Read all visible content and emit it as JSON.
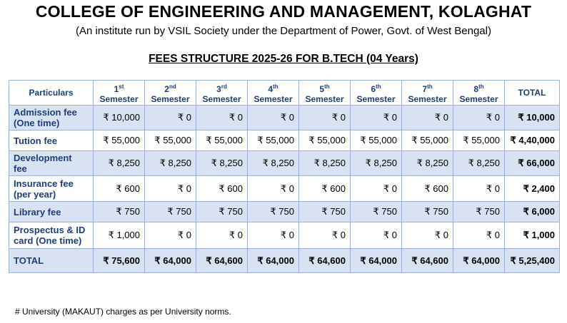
{
  "header": {
    "title": "COLLEGE OF ENGINEERING AND MANAGEMENT, KOLAGHAT",
    "subtitle": "(An institute run by VSIL Society under the Department of Power, Govt. of West Bengal)",
    "heading": "FEES STRUCTURE 2025-26 FOR B.TECH (04 Years)"
  },
  "table": {
    "col_particulars": "Particulars",
    "col_total": "TOTAL",
    "semester_word": "Semester",
    "semesters": [
      {
        "num": "1",
        "sup": "st"
      },
      {
        "num": "2",
        "sup": "nd"
      },
      {
        "num": "3",
        "sup": "rd"
      },
      {
        "num": "4",
        "sup": "th"
      },
      {
        "num": "5",
        "sup": "th"
      },
      {
        "num": "6",
        "sup": "th"
      },
      {
        "num": "7",
        "sup": "th"
      },
      {
        "num": "8",
        "sup": "th"
      }
    ],
    "rows": [
      {
        "label_lines": [
          "Admission fee",
          "(One time)"
        ],
        "values": [
          "₹ 10,000",
          "₹ 0",
          "₹ 0",
          "₹ 0",
          "₹ 0",
          "₹ 0",
          "₹ 0",
          "₹ 0"
        ],
        "total": "₹ 10,000"
      },
      {
        "label_lines": [
          "Tution fee"
        ],
        "values": [
          "₹ 55,000",
          "₹ 55,000",
          "₹ 55,000",
          "₹ 55,000",
          "₹ 55,000",
          "₹ 55,000",
          "₹ 55,000",
          "₹ 55,000"
        ],
        "total": "₹ 4,40,000"
      },
      {
        "label_lines": [
          "Development",
          "fee"
        ],
        "values": [
          "₹ 8,250",
          "₹ 8,250",
          "₹ 8,250",
          "₹ 8,250",
          "₹ 8,250",
          "₹ 8,250",
          "₹ 8,250",
          "₹ 8,250"
        ],
        "total": "₹ 66,000"
      },
      {
        "label_lines": [
          "Insurance fee",
          "(per year)"
        ],
        "values": [
          "₹ 600",
          "₹ 0",
          "₹ 600",
          "₹ 0",
          "₹ 600",
          "₹ 0",
          "₹ 600",
          "₹ 0"
        ],
        "total": "₹ 2,400"
      },
      {
        "label_lines": [
          "Library fee"
        ],
        "values": [
          "₹ 750",
          "₹ 750",
          "₹ 750",
          "₹ 750",
          "₹ 750",
          "₹ 750",
          "₹ 750",
          "₹ 750"
        ],
        "total": "₹ 6,000"
      },
      {
        "label_lines": [
          "Prospectus & ID",
          "card (One time)"
        ],
        "values": [
          "₹ 1,000",
          "₹ 0",
          "₹ 0",
          "₹ 0",
          "₹ 0",
          "₹ 0",
          "₹ 0",
          "₹ 0"
        ],
        "total": "₹ 1,000"
      }
    ],
    "total_row": {
      "label": "TOTAL",
      "values": [
        "₹ 75,600",
        "₹ 64,000",
        "₹ 64,600",
        "₹ 64,000",
        "₹ 64,600",
        "₹ 64,000",
        "₹ 64,600",
        "₹ 64,000"
      ],
      "total": "₹ 5,25,400"
    }
  },
  "footnote": "# University (MAKAUT) charges as per University norms."
}
